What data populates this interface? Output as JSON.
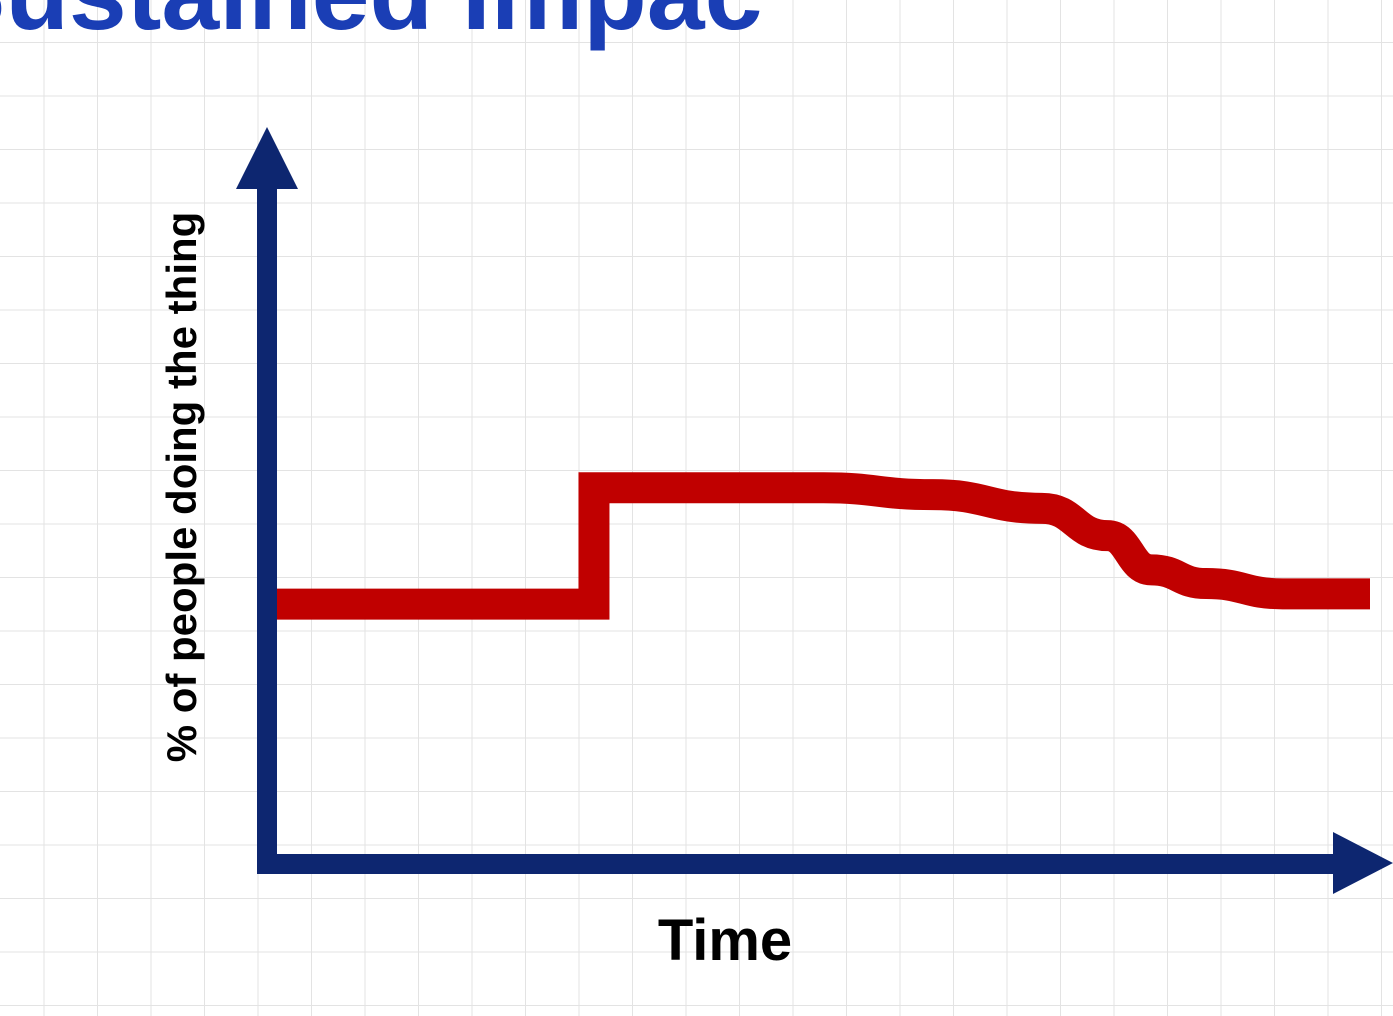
{
  "page": {
    "title": "Sustained Impact",
    "title_color": "#1a3eb5"
  },
  "chart_data": {
    "type": "line",
    "title": "Sustained Impact",
    "xlabel": "Time",
    "ylabel": "% of people doing the thing",
    "x_ticks": "none",
    "y_ticks": "none",
    "grid": true,
    "axis_color": "#0d2670",
    "series": [
      {
        "color": "#c00000",
        "points": [
          [
            0.0,
            0.38
          ],
          [
            0.29,
            0.38
          ],
          [
            0.29,
            0.55
          ],
          [
            0.5,
            0.55
          ],
          [
            0.6,
            0.54
          ],
          [
            0.7,
            0.52
          ],
          [
            0.76,
            0.48
          ],
          [
            0.8,
            0.43
          ],
          [
            0.85,
            0.41
          ],
          [
            0.92,
            0.395
          ],
          [
            1.0,
            0.395
          ]
        ]
      }
    ],
    "xlim": [
      0,
      1
    ],
    "ylim": [
      0,
      1
    ]
  }
}
